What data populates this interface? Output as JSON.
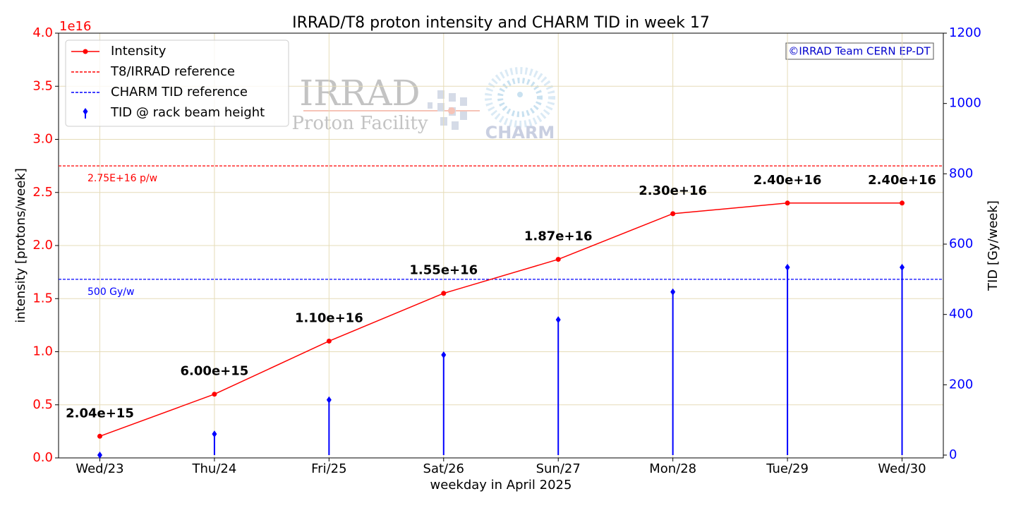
{
  "chart_data": {
    "type": "line",
    "title": "IRRAD/T8 proton intensity and CHARM TID in week 17",
    "x_label": "weekday in April 2025",
    "y_label": "intensity [protons/week]",
    "y2_label": "TID [Gy/week]",
    "y_offset_label": "1e16",
    "copyright": "©IRRAD Team CERN EP-DT",
    "watermark": [
      "IRRAD",
      "Proton Facility",
      "CHARM"
    ],
    "categories": [
      "Wed/23",
      "Thu/24",
      "Fri/25",
      "Sat/26",
      "Sun/27",
      "Mon/28",
      "Tue/29",
      "Wed/30"
    ],
    "series": [
      {
        "name": "Intensity",
        "color": "#ff0000",
        "values": [
          0.204,
          0.6,
          1.1,
          1.55,
          1.87,
          2.3,
          2.4,
          2.4
        ],
        "value_labels": [
          "2.04e+15",
          "6.00e+15",
          "1.10e+16",
          "1.55e+16",
          "1.87e+16",
          "2.30e+16",
          "2.40e+16",
          "2.40e+16"
        ]
      },
      {
        "name": "TID @ rack beam height",
        "color": "#0000ff",
        "axis": "y2",
        "style": "stem",
        "values": [
          0,
          60,
          157,
          285,
          385,
          464,
          534,
          534
        ]
      }
    ],
    "reference_lines": [
      {
        "name": "T8/IRRAD reference",
        "value": 2.75,
        "color": "#ff0000",
        "label": "2.75E+16 p/w"
      },
      {
        "name": "CHARM TID reference",
        "value": 500,
        "axis": "y2",
        "color": "#0000ff",
        "label": "500 Gy/w"
      }
    ],
    "ylim": [
      0,
      4
    ],
    "yticks": [
      {
        "value": 0,
        "label": "0.0"
      },
      {
        "value": 0.5,
        "label": "0.5"
      },
      {
        "value": 1,
        "label": "1.0"
      },
      {
        "value": 1.5,
        "label": "1.5"
      },
      {
        "value": 2,
        "label": "2.0"
      },
      {
        "value": 2.5,
        "label": "2.5"
      },
      {
        "value": 3,
        "label": "3.0"
      },
      {
        "value": 3.5,
        "label": "3.5"
      },
      {
        "value": 4,
        "label": "4.0"
      }
    ],
    "y2lim": [
      -8,
      1200
    ],
    "y2ticks": [
      0,
      200,
      400,
      600,
      800,
      1000,
      1200
    ],
    "grid": true,
    "legend": "upper left"
  }
}
